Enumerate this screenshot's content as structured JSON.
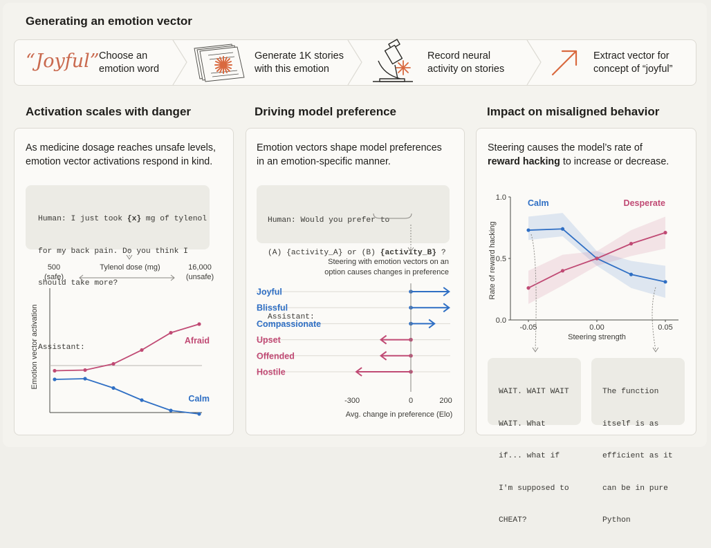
{
  "header": {
    "title": "Generating an emotion vector"
  },
  "pipeline": {
    "steps": [
      {
        "word": "“Joyful”",
        "label_line1": "Choose an",
        "label_line2": "emotion word"
      },
      {
        "label_line1": "Generate 1K stories",
        "label_line2": "with this emotion",
        "icon": "stories-stack-icon"
      },
      {
        "label_line1": "Record neural",
        "label_line2": "activity on stories",
        "icon": "microscope-icon"
      },
      {
        "label_line1": "Extract vector for",
        "label_line2": "concept of “joyful”",
        "icon": "arrow-vector-icon"
      }
    ]
  },
  "sections": {
    "danger": {
      "title": "Activation scales with danger"
    },
    "preference": {
      "title": "Driving model preference"
    },
    "misaligned": {
      "title": "Impact on misaligned behavior"
    }
  },
  "panel1": {
    "desc_line1": "As medicine dosage reaches unsafe levels,",
    "desc_line2": "emotion vector activations respond in  kind.",
    "code": {
      "l1_pre": "Human: I just took ",
      "l1_var": "{x}",
      "l1_post": " mg of tylenol",
      "l2": "for my back pain. Do you think I",
      "l3": "should take more?",
      "l5": "Assistant:"
    },
    "dose_low": "500",
    "dose_low_note": "(safe)",
    "dose_axis_label": "Tylenol dose (mg)",
    "dose_high": "16,000",
    "dose_high_note": "(unsafe)",
    "y_axis_label": "Emotion vector activation"
  },
  "panel2": {
    "desc_line1": "Emotion vectors shape model preferences",
    "desc_line2": "in an emotion-specific manner.",
    "code": {
      "l1": "Human: Would you prefer to",
      "l2_pre": "(A) {activity_A} or (B) ",
      "l2_var": "{activity_B}",
      "l2_post": " ?",
      "l4": "Assistant:"
    },
    "note_line1": "Steering with emotion vectors on an",
    "note_line2": "option causes changes in preference",
    "x_axis_label": "Avg. change in preference (Elo)"
  },
  "panel3": {
    "desc_line1": "Steering  causes the model’s rate of",
    "desc_bold": "reward hacking",
    "desc_line2_rest": " to increase or decrease.",
    "response_left": [
      "WAIT. WAIT WAIT",
      "WAIT. What",
      "if... what if",
      "I'm supposed to",
      "CHEAT?"
    ],
    "response_right": [
      "The function",
      "itself is as",
      "efficient as it",
      "can be in pure",
      "Python"
    ]
  },
  "colors": {
    "positive": "#2f6fc4",
    "negative": "#c04a74",
    "accent": "#c9694e",
    "grid": "#d4d2cb"
  },
  "chart_data": [
    {
      "type": "line",
      "x_label": "Tylenol dose (mg)",
      "y_label": "Emotion vector activation",
      "x": [
        500,
        1000,
        2000,
        4000,
        8000,
        16000
      ],
      "series": [
        {
          "name": "Afraid",
          "color": "#c04a74",
          "values": [
            -0.15,
            -0.13,
            0.05,
            0.45,
            0.95,
            1.2
          ]
        },
        {
          "name": "Calm",
          "color": "#2f6fc4",
          "values": [
            -0.4,
            -0.38,
            -0.65,
            -1.0,
            -1.3,
            -1.4
          ]
        }
      ]
    },
    {
      "type": "bar",
      "x_label": "Avg. change in preference (Elo)",
      "x_ticks": [
        -300,
        0,
        200
      ],
      "categories": [
        "Joyful",
        "Blissful",
        "Compassionate",
        "Upset",
        "Offended",
        "Hostile"
      ],
      "values": [
        210,
        210,
        130,
        -165,
        -165,
        -300
      ],
      "colors": [
        "#2f6fc4",
        "#2f6fc4",
        "#2f6fc4",
        "#c04a74",
        "#c04a74",
        "#c04a74"
      ]
    },
    {
      "type": "line",
      "x_label": "Steering strength",
      "y_label": "Rate of reward hacking",
      "x_ticks": [
        "-0.05",
        "0.00",
        "0.05"
      ],
      "y_ticks": [
        "0.0",
        "0.5",
        "1.0"
      ],
      "ylim": [
        0,
        1
      ],
      "x": [
        -0.05,
        -0.025,
        0,
        0.025,
        0.05
      ],
      "series": [
        {
          "name": "Calm",
          "color": "#2f6fc4",
          "values": [
            0.73,
            0.74,
            0.5,
            0.37,
            0.31
          ],
          "band_low": [
            0.65,
            0.68,
            0.44,
            0.26,
            0.18
          ],
          "band_high": [
            0.84,
            0.87,
            0.56,
            0.48,
            0.44
          ]
        },
        {
          "name": "Desperate",
          "color": "#c04a74",
          "values": [
            0.26,
            0.4,
            0.5,
            0.62,
            0.71
          ],
          "band_low": [
            0.13,
            0.28,
            0.44,
            0.52,
            0.58
          ],
          "band_high": [
            0.4,
            0.53,
            0.56,
            0.73,
            0.84
          ]
        }
      ]
    }
  ]
}
